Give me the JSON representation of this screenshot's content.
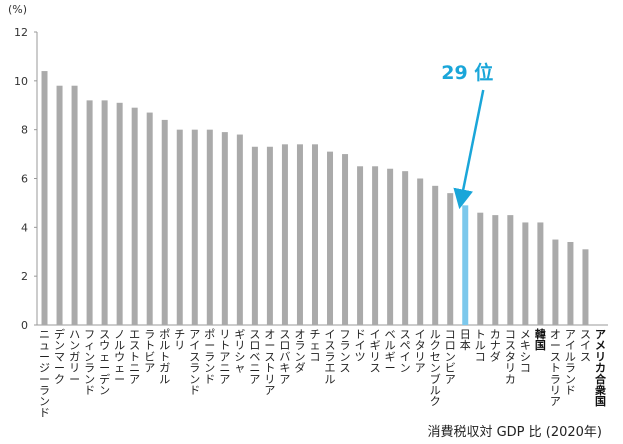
{
  "chart_data": {
    "type": "bar",
    "ylabel_unit": "(%)",
    "ylim": [
      0,
      12
    ],
    "yticks": [
      "0",
      "2",
      "4",
      "6",
      "8",
      "10",
      "12"
    ],
    "caption": "消費税収対 GDP 比 (2020年)",
    "categories": [
      "ニュージーランド",
      "デンマーク",
      "ハンガリー",
      "フィンランド",
      "スウェーデン",
      "ノルウェー",
      "エストニア",
      "ラトビア",
      "ポルトガル",
      "チリ",
      "アイスランド",
      "ポーランド",
      "リトアニア",
      "ギリシャ",
      "スロベニア",
      "オーストリア",
      "スロバキア",
      "オランダ",
      "チェコ",
      "イスラエル",
      "フランス",
      "ドイツ",
      "イギリス",
      "ベルギー",
      "スペイン",
      "イタリア",
      "ルクセンブルク",
      "コロンビア",
      "日本",
      "トルコ",
      "カナダ",
      "コスタリカ",
      "メキシコ",
      "韓国",
      "オーストラリア",
      "アイルランド",
      "スイス",
      "アメリカ合衆国"
    ],
    "values": [
      10.4,
      9.8,
      9.8,
      9.2,
      9.2,
      9.1,
      8.9,
      8.7,
      8.4,
      8.0,
      8.0,
      8.0,
      7.9,
      7.8,
      7.3,
      7.3,
      7.4,
      7.4,
      7.4,
      7.1,
      7.0,
      6.5,
      6.5,
      6.4,
      6.3,
      6.0,
      5.7,
      5.4,
      4.9,
      4.6,
      4.5,
      4.5,
      4.2,
      4.2,
      3.5,
      3.4,
      3.1,
      0
    ],
    "highlight": "日本",
    "bold_categories": [
      "韓国",
      "アメリカ合衆国"
    ],
    "annotation": "29 位",
    "colors": {
      "bar": "#aaaaaa",
      "highlight": "#7cc8ec",
      "annotation": "#1aa6d9",
      "axis": "#999999"
    }
  }
}
